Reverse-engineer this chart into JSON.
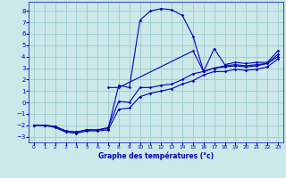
{
  "xlabel": "Graphe des températures (°c)",
  "bg_color": "#cce8e8",
  "line_color": "#0000bb",
  "grid_color": "#99cccc",
  "x_min": -0.5,
  "x_max": 23.5,
  "y_min": -3.5,
  "y_max": 8.8,
  "yticks": [
    -3,
    -2,
    -1,
    0,
    1,
    2,
    3,
    4,
    5,
    6,
    7,
    8
  ],
  "xticks": [
    0,
    1,
    2,
    3,
    4,
    5,
    6,
    7,
    8,
    9,
    10,
    11,
    12,
    13,
    14,
    15,
    16,
    17,
    18,
    19,
    20,
    21,
    22,
    23
  ],
  "series": [
    {
      "x": [
        0,
        1,
        2,
        3,
        4,
        5,
        6,
        7,
        8,
        9,
        10,
        11,
        12,
        13,
        14,
        15,
        16,
        17,
        18,
        19,
        20,
        21,
        22,
        23
      ],
      "y": [
        -2.0,
        -2.0,
        -2.1,
        -2.5,
        -2.6,
        -2.4,
        -2.4,
        -2.3,
        1.5,
        1.3,
        7.2,
        8.0,
        8.2,
        8.1,
        7.6,
        5.8,
        2.7,
        3.0,
        3.1,
        3.2,
        3.1,
        3.2,
        3.4,
        4.0
      ]
    },
    {
      "x": [
        0,
        1,
        2,
        3,
        4,
        5,
        6,
        7,
        8,
        9,
        10,
        11,
        12,
        13,
        14,
        15,
        16,
        17,
        18,
        19,
        20,
        21,
        22,
        23
      ],
      "y": [
        -2.0,
        -2.0,
        -2.1,
        -2.5,
        -2.6,
        -2.4,
        -2.4,
        -2.2,
        0.1,
        0.0,
        1.3,
        1.3,
        1.5,
        1.6,
        2.0,
        2.5,
        2.7,
        3.0,
        3.2,
        3.3,
        3.2,
        3.3,
        3.4,
        4.2
      ]
    },
    {
      "x": [
        0,
        1,
        2,
        3,
        4,
        5,
        6,
        7,
        8,
        9,
        10,
        11,
        12,
        13,
        14,
        15,
        16,
        17,
        18,
        19,
        20,
        21,
        22,
        23
      ],
      "y": [
        -2.0,
        -2.0,
        -2.2,
        -2.6,
        -2.7,
        -2.5,
        -2.5,
        -2.4,
        -0.6,
        -0.5,
        0.5,
        0.8,
        1.0,
        1.2,
        1.6,
        1.9,
        2.4,
        2.7,
        2.7,
        2.9,
        2.8,
        2.9,
        3.1,
        3.8
      ]
    },
    {
      "x": [
        7,
        8,
        15,
        16,
        17,
        18,
        19,
        20,
        21,
        22,
        23
      ],
      "y": [
        1.3,
        1.3,
        4.5,
        2.7,
        4.7,
        3.3,
        3.5,
        3.4,
        3.5,
        3.5,
        4.5
      ]
    }
  ]
}
